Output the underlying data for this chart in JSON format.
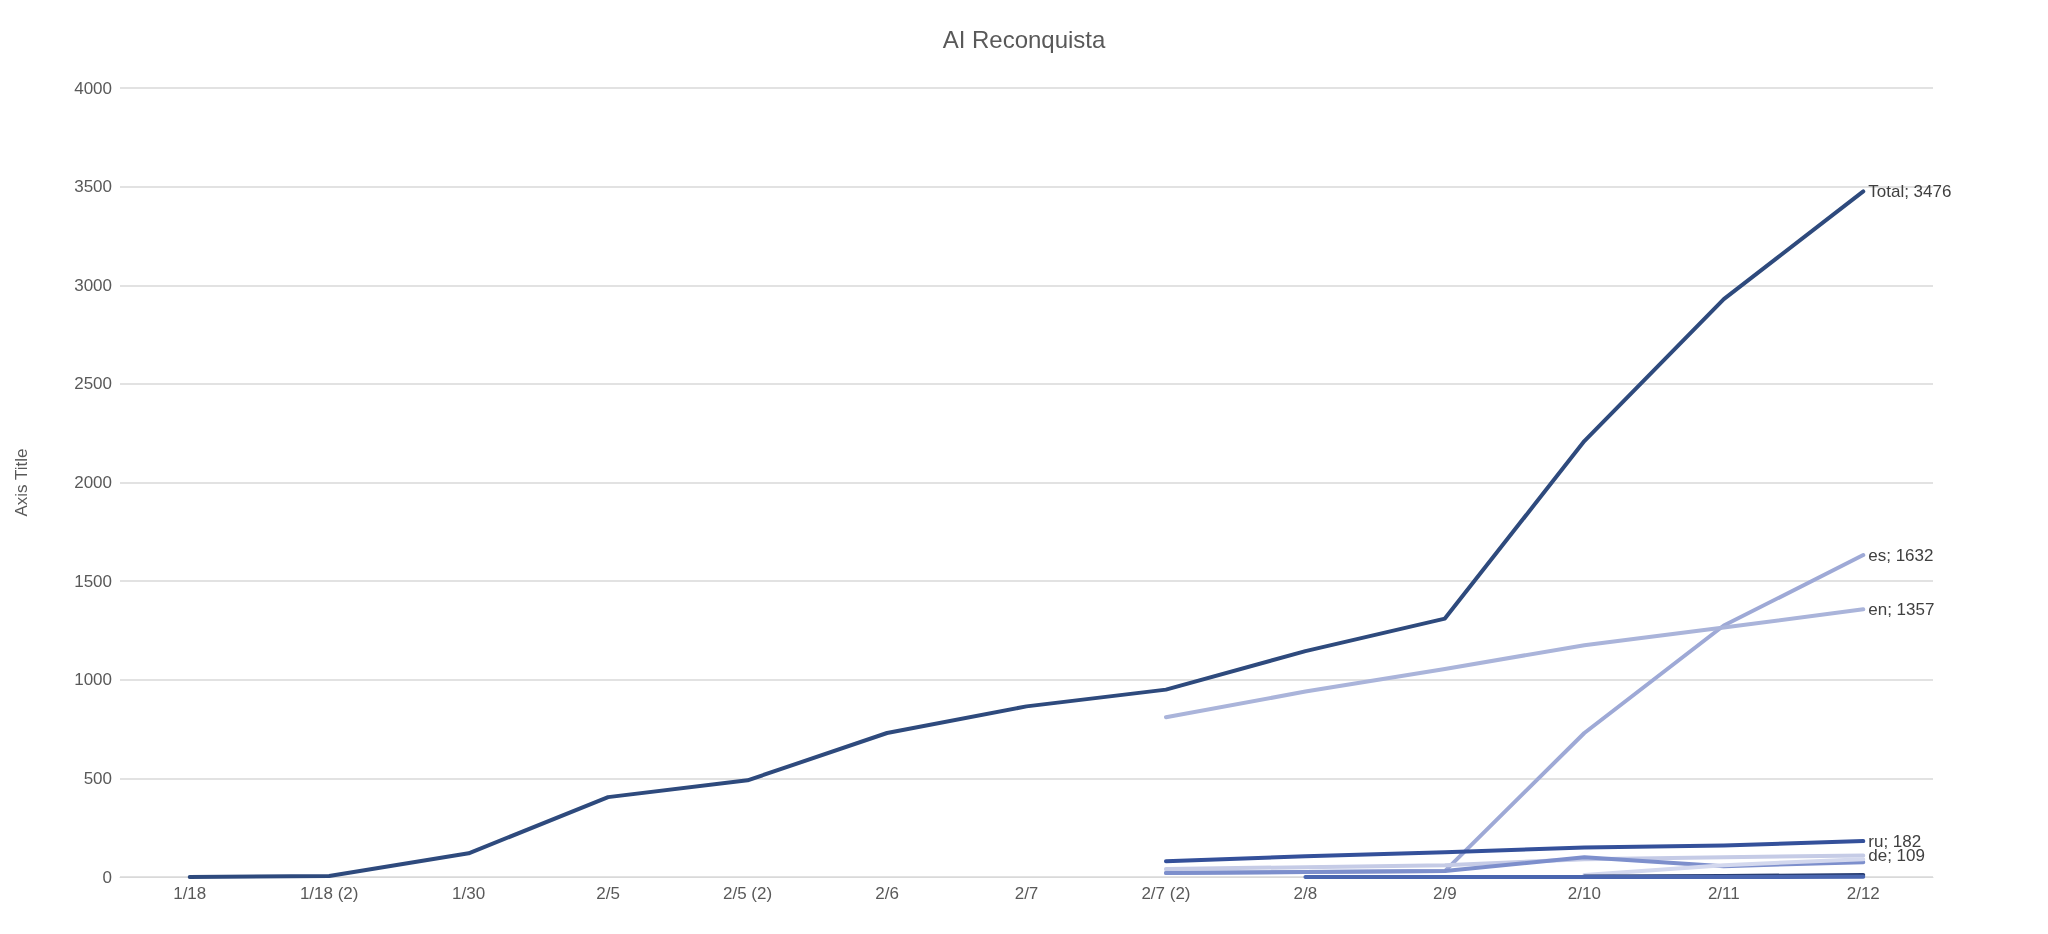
{
  "chart_data": {
    "type": "line",
    "title": "AI Reconquista",
    "ylabel": "Axis Title",
    "categories": [
      "1/18",
      "1/18 (2)",
      "1/30",
      "2/5",
      "2/5 (2)",
      "2/6",
      "2/7",
      "2/7 (2)",
      "2/8",
      "2/9",
      "2/10",
      "2/11",
      "2/12"
    ],
    "series": [
      {
        "name": "Total;",
        "color": "#2e4a7d",
        "values": [
          0,
          5,
          120,
          405,
          490,
          730,
          865,
          950,
          1145,
          1310,
          2210,
          2930,
          3476
        ],
        "value_labels": [
          null,
          null,
          null,
          null,
          null,
          null,
          null,
          null,
          null,
          null,
          null,
          null,
          "3476"
        ]
      },
      {
        "name": "es;",
        "color": "#9ea9d6",
        "values": [
          null,
          null,
          null,
          null,
          null,
          null,
          null,
          20,
          25,
          30,
          730,
          1275,
          1632
        ],
        "value_labels": [
          null,
          null,
          null,
          null,
          null,
          null,
          null,
          null,
          null,
          null,
          null,
          null,
          "1632"
        ]
      },
      {
        "name": "en;",
        "color": "#aab4da",
        "values": [
          null,
          null,
          null,
          null,
          null,
          null,
          null,
          810,
          940,
          1055,
          1175,
          1265,
          1357
        ],
        "value_labels": [
          null,
          null,
          null,
          null,
          null,
          null,
          null,
          null,
          null,
          null,
          null,
          null,
          "1357"
        ]
      },
      {
        "name": "ru;",
        "color": "#34509a",
        "values": [
          null,
          null,
          null,
          null,
          null,
          null,
          null,
          80,
          105,
          125,
          150,
          160,
          182
        ],
        "value_labels": [
          null,
          null,
          null,
          null,
          null,
          null,
          null,
          null,
          null,
          null,
          null,
          null,
          "182"
        ]
      },
      {
        "name": "de;",
        "color": "#c5cbe6",
        "values": [
          null,
          null,
          null,
          null,
          null,
          null,
          null,
          40,
          50,
          60,
          90,
          100,
          109
        ],
        "value_labels": [
          null,
          null,
          null,
          null,
          null,
          null,
          null,
          null,
          null,
          null,
          null,
          null,
          "109"
        ]
      },
      {
        "color": "#7d8fcc",
        "values": [
          null,
          null,
          null,
          null,
          null,
          null,
          null,
          20,
          25,
          30,
          100,
          55,
          75
        ]
      },
      {
        "color": "#d3d8ee",
        "values": [
          null,
          null,
          null,
          null,
          null,
          null,
          null,
          null,
          null,
          null,
          10,
          60,
          90
        ]
      },
      {
        "color": "#2a3f73",
        "values": [
          null,
          null,
          null,
          null,
          null,
          null,
          null,
          null,
          null,
          null,
          2,
          5,
          10
        ]
      },
      {
        "color": "#4a66b0",
        "values": [
          null,
          null,
          null,
          null,
          null,
          null,
          null,
          null,
          0,
          0,
          0,
          0,
          1
        ]
      }
    ],
    "ylim": [
      0,
      4000
    ],
    "yticks": [
      0,
      500,
      1000,
      1500,
      2000,
      2500,
      3000,
      3500,
      4000
    ],
    "grid": "y",
    "marker": "none",
    "line_style": "solid"
  }
}
